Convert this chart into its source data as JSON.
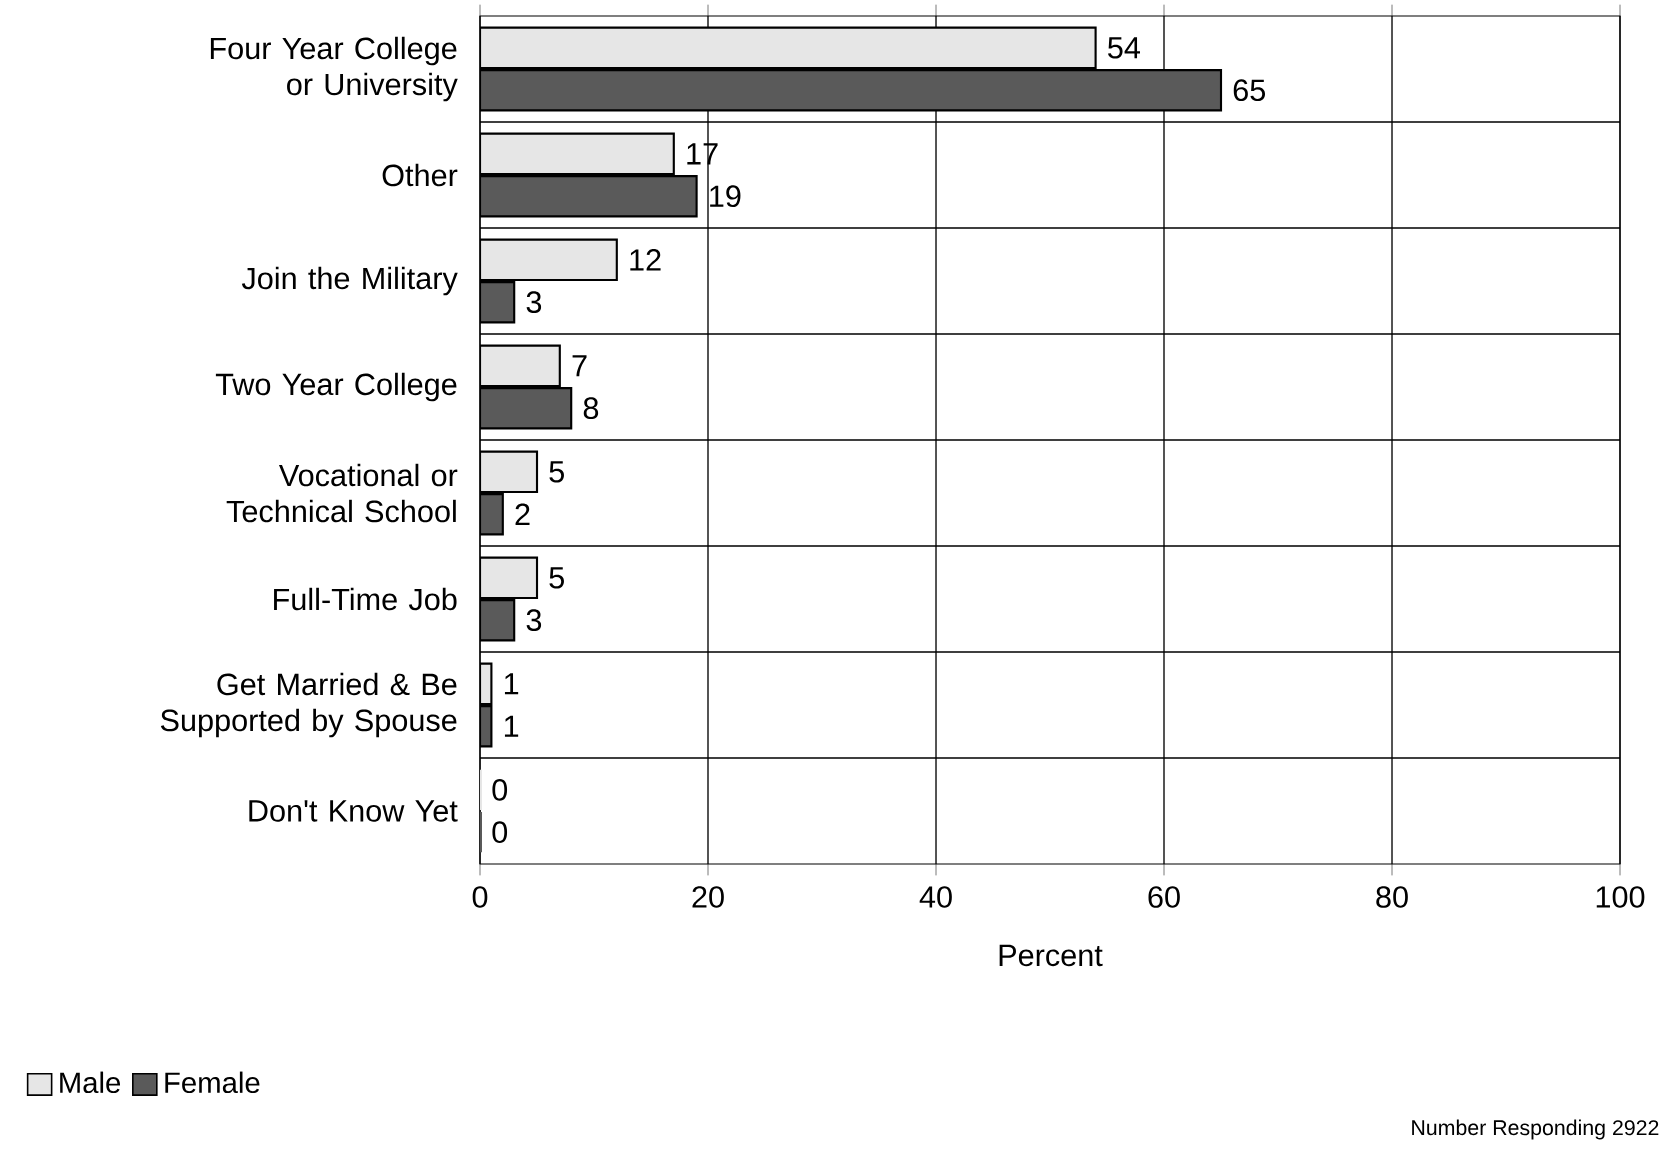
{
  "chart_data": {
    "type": "bar",
    "orientation": "horizontal",
    "xlabel": "Percent",
    "categories": [
      "Four Year College or University",
      "Other",
      "Join the Military",
      "Two Year College",
      "Vocational or Technical School",
      "Full-Time Job",
      "Get Married & Be Supported by Spouse",
      "Don't Know Yet"
    ],
    "series": [
      {
        "name": "Male",
        "color": "#e6e6e6",
        "values": [
          54,
          17,
          12,
          7,
          5,
          5,
          1,
          0
        ]
      },
      {
        "name": "Female",
        "color": "#5a5a5a",
        "values": [
          65,
          19,
          3,
          8,
          2,
          3,
          1,
          0
        ]
      }
    ],
    "xlim": [
      0,
      100
    ],
    "xticks": [
      0,
      20,
      40,
      60,
      80,
      100
    ],
    "grid": true,
    "legend": "bottom left",
    "data_labels": true,
    "annotations": [
      "Number Responding 2922"
    ]
  }
}
